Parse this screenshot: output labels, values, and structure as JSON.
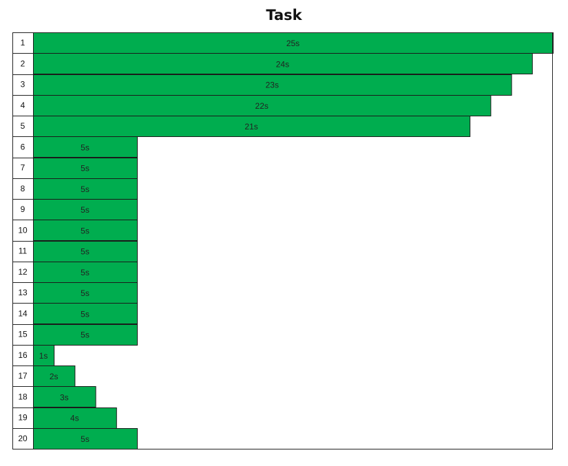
{
  "chart_data": {
    "type": "bar",
    "orientation": "horizontal",
    "title": "Task",
    "categories": [
      "1",
      "2",
      "3",
      "4",
      "5",
      "6",
      "7",
      "8",
      "9",
      "10",
      "11",
      "12",
      "13",
      "14",
      "15",
      "16",
      "17",
      "18",
      "19",
      "20"
    ],
    "values": [
      25,
      24,
      23,
      22,
      21,
      5,
      5,
      5,
      5,
      5,
      5,
      5,
      5,
      5,
      5,
      1,
      2,
      3,
      4,
      5
    ],
    "labels": [
      "25s",
      "24s",
      "23s",
      "22s",
      "21s",
      "5s",
      "5s",
      "5s",
      "5s",
      "5s",
      "5s",
      "5s",
      "5s",
      "5s",
      "5s",
      "1s",
      "2s",
      "3s",
      "4s",
      "5s"
    ],
    "xlim": [
      0,
      25
    ],
    "bar_color": "#00ad4f",
    "grid": false
  }
}
